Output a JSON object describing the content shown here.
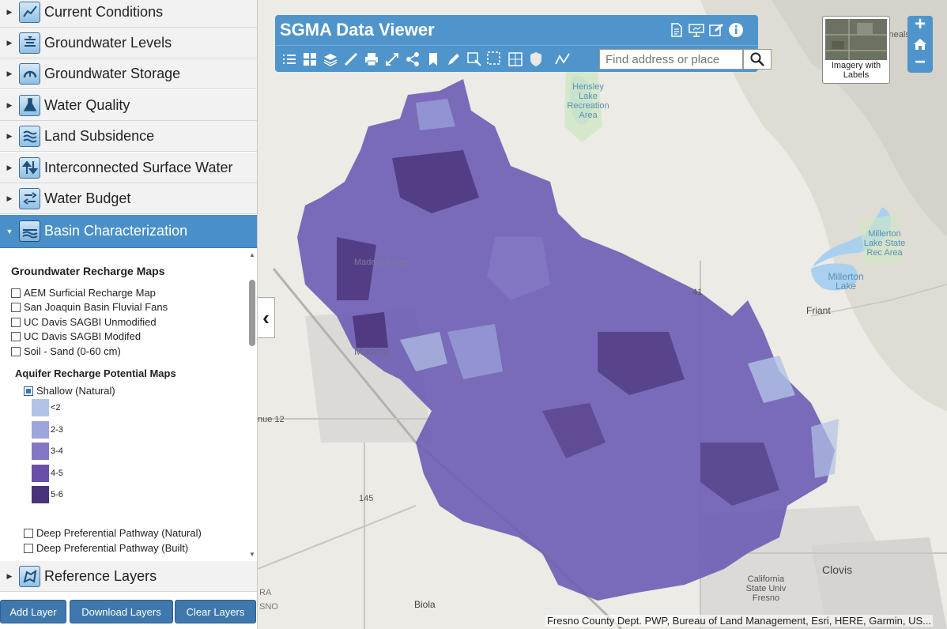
{
  "sidebar": {
    "categories": [
      {
        "label": "Current Conditions",
        "icon": "trend-chart-icon"
      },
      {
        "label": "Groundwater Levels",
        "icon": "well-level-icon"
      },
      {
        "label": "Groundwater Storage",
        "icon": "storage-gauge-icon"
      },
      {
        "label": "Water Quality",
        "icon": "flask-icon"
      },
      {
        "label": "Land Subsidence",
        "icon": "layers-wave-icon"
      },
      {
        "label": "Interconnected Surface Water",
        "icon": "arrows-exchange-icon"
      },
      {
        "label": "Water Budget",
        "icon": "budget-arrows-icon"
      },
      {
        "label": "Basin Characterization",
        "icon": "basin-icon",
        "expanded": true
      },
      {
        "label": "Reference Layers",
        "icon": "reference-map-icon"
      }
    ],
    "panel": {
      "recharge_title": "Groundwater Recharge Maps",
      "recharge_layers": [
        {
          "label": "AEM Surficial Recharge Map",
          "checked": false
        },
        {
          "label": "San Joaquin Basin Fluvial Fans",
          "checked": false
        },
        {
          "label": "UC Davis SAGBI Unmodified",
          "checked": false
        },
        {
          "label": "UC Davis SAGBI Modifed",
          "checked": false
        },
        {
          "label": "Soil - Sand (0-60 cm)",
          "checked": false
        }
      ],
      "aquifer_title": "Aquifer Recharge Potential Maps",
      "shallow_layer": {
        "label": "Shallow (Natural)",
        "checked": true
      },
      "legend": [
        {
          "label": "<2",
          "color": "#b3c3e6"
        },
        {
          "label": "2-3",
          "color": "#9da5dc"
        },
        {
          "label": "3-4",
          "color": "#8478c4"
        },
        {
          "label": "4-5",
          "color": "#6a4fa8"
        },
        {
          "label": "5-6",
          "color": "#4a3378"
        }
      ],
      "deep_layers": [
        {
          "label": "Deep Preferential Pathway (Natural)",
          "checked": false
        },
        {
          "label": "Deep Preferential Pathway (Built)",
          "checked": false
        }
      ]
    },
    "buttons": {
      "add": "Add Layer",
      "download": "Download Layers",
      "clear": "Clear Layers"
    }
  },
  "viewer": {
    "title": "SGMA Data Viewer",
    "search_placeholder": "Find address or place",
    "basemap_label": "Imagery with Labels",
    "zoom_in": "+",
    "zoom_out": "−"
  },
  "map": {
    "labels": {
      "hensley": "Hensley Lake Recreation Area",
      "millerton_rec": "Millerton Lake State Rec Area",
      "millerton_lake": "Millerton Lake",
      "friant": "Friant",
      "madera_acres": "Madera Acres",
      "madera": "Madera",
      "avenue12": "nue 12",
      "route41": "41",
      "route145": "145",
      "clovis": "Clovis",
      "csu": "California State Univ Fresno",
      "biola": "Biola",
      "onealls": "Oneals",
      "fresno_edge": "SNO",
      "ra_edge": "RA"
    },
    "attribution": "Fresno County Dept. PWP, Bureau of Land Management, Esri, HERE, Garmin, US..."
  },
  "colors": {
    "accent": "#4f95cc",
    "active_category": "#4a90c8",
    "button": "#3f78ad",
    "overlay_base": "#6f5fb5"
  }
}
